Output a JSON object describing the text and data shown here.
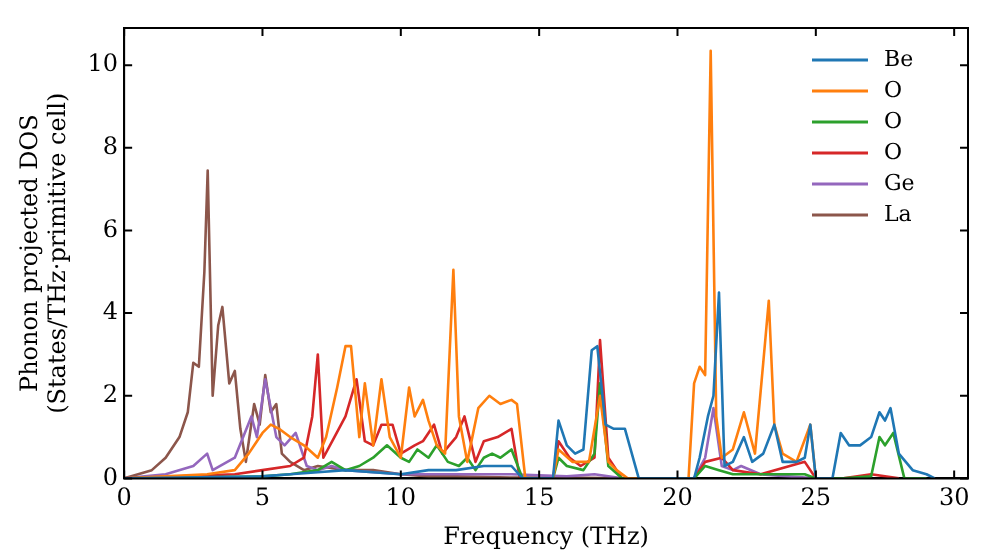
{
  "chart_data": {
    "type": "line",
    "xlabel": "Frequency (THz)",
    "ylabel": "Phonon projected DOS\n(States/THz·primitive cell)",
    "xlim": [
      0,
      30.5
    ],
    "ylim": [
      0,
      10.9
    ],
    "xticks": [
      0,
      5,
      10,
      15,
      20,
      25,
      30
    ],
    "yticks": [
      0,
      2,
      4,
      6,
      8,
      10
    ],
    "grid": false,
    "legend": "top right",
    "marker": "none",
    "line_style": "solid",
    "series": [
      {
        "name": "Be",
        "color": "#1f77b4",
        "x": [
          0,
          5,
          6,
          7,
          8,
          9,
          10,
          11,
          12,
          13,
          14,
          14.4,
          15.5,
          15.7,
          16,
          16.3,
          16.6,
          16.9,
          17.1,
          17.4,
          17.7,
          18.1,
          18.6,
          20.6,
          20.8,
          21.1,
          21.3,
          21.5,
          21.7,
          22,
          22.4,
          22.7,
          23.1,
          23.5,
          23.8,
          24.3,
          24.6,
          24.8,
          25,
          25.6,
          25.9,
          26.2,
          26.6,
          27,
          27.3,
          27.5,
          27.7,
          28,
          28.5,
          29,
          29.3
        ],
        "values": [
          0,
          0.05,
          0.1,
          0.15,
          0.2,
          0.15,
          0.1,
          0.2,
          0.2,
          0.3,
          0.3,
          0,
          0,
          1.4,
          0.8,
          0.6,
          0.7,
          3.1,
          3.2,
          1.3,
          1.2,
          1.2,
          0,
          0,
          0.5,
          1.5,
          2.0,
          4.5,
          0.3,
          0.4,
          1.0,
          0.4,
          0.6,
          1.3,
          0.4,
          0.4,
          0.5,
          1.3,
          0,
          0,
          1.1,
          0.8,
          0.8,
          1.0,
          1.6,
          1.4,
          1.7,
          0.6,
          0.2,
          0.1,
          0
        ]
      },
      {
        "name": "O",
        "color": "#ff7f0e",
        "x": [
          0,
          3,
          4,
          4.5,
          5,
          5.3,
          5.6,
          6,
          6.5,
          7,
          7.3,
          7.7,
          8,
          8.2,
          8.5,
          8.7,
          9,
          9.3,
          9.6,
          10,
          10.3,
          10.5,
          10.8,
          11,
          11.3,
          11.6,
          11.9,
          12.1,
          12.4,
          12.8,
          13.2,
          13.6,
          14,
          14.2,
          14.5,
          15.5,
          15.7,
          16.2,
          16.8,
          17.2,
          17.5,
          17.8,
          18.2,
          20.4,
          20.6,
          20.8,
          21,
          21.2,
          21.4,
          21.6,
          22,
          22.4,
          22.8,
          23.1,
          23.3,
          23.5,
          23.8,
          24.3,
          24.8,
          25,
          25.5
        ],
        "values": [
          0,
          0.1,
          0.2,
          0.6,
          1.1,
          1.3,
          1.2,
          1.0,
          0.8,
          0.5,
          1.0,
          2.2,
          3.2,
          3.2,
          1.0,
          2.3,
          0.8,
          2.4,
          1.0,
          0.5,
          2.2,
          1.5,
          1.9,
          1.4,
          0.8,
          0.6,
          5.05,
          1.5,
          0.4,
          1.7,
          2.0,
          1.8,
          1.9,
          1.8,
          0,
          0,
          0.7,
          0.4,
          0.4,
          2.0,
          0.4,
          0.2,
          0,
          0,
          2.3,
          2.7,
          2.5,
          10.35,
          1.5,
          0.5,
          0.7,
          1.6,
          0.6,
          2.8,
          4.3,
          1.3,
          0.6,
          0.4,
          1.3,
          0,
          0
        ]
      },
      {
        "name": "O",
        "color": "#2ca02c",
        "x": [
          0,
          5,
          6,
          7,
          7.5,
          8,
          8.5,
          9,
          9.5,
          10,
          10.3,
          10.6,
          11,
          11.3,
          11.7,
          12.1,
          12.4,
          12.7,
          13,
          13.3,
          13.6,
          14,
          14.4,
          15.5,
          15.7,
          16,
          16.6,
          17,
          17.2,
          17.5,
          18,
          20.6,
          21,
          21.5,
          22,
          24.6,
          25,
          26,
          27,
          27.3,
          27.5,
          27.8,
          28.2,
          29
        ],
        "values": [
          0,
          0.05,
          0.1,
          0.2,
          0.4,
          0.2,
          0.3,
          0.5,
          0.8,
          0.5,
          0.4,
          0.7,
          0.5,
          0.8,
          0.4,
          0.3,
          0.5,
          0.2,
          0.5,
          0.6,
          0.5,
          0.7,
          0,
          0,
          0.5,
          0.3,
          0.2,
          0.6,
          2.3,
          0.3,
          0,
          0,
          0.3,
          0.2,
          0.1,
          0.1,
          0,
          0,
          0.05,
          1.0,
          0.8,
          1.1,
          0,
          0
        ]
      },
      {
        "name": "O",
        "color": "#d62728",
        "x": [
          0,
          4,
          5,
          6,
          6.5,
          6.8,
          7,
          7.2,
          7.6,
          8,
          8.4,
          8.7,
          9,
          9.3,
          9.7,
          10,
          10.5,
          10.8,
          11.2,
          11.5,
          12,
          12.3,
          12.7,
          13,
          13.5,
          14,
          14.3,
          15.5,
          15.7,
          16.1,
          16.5,
          17,
          17.2,
          17.5,
          18,
          20.6,
          21,
          21.6,
          22,
          23,
          24.6,
          25,
          26,
          27,
          28
        ],
        "values": [
          0,
          0.1,
          0.2,
          0.3,
          0.5,
          1.5,
          3.0,
          0.5,
          1.0,
          1.5,
          2.4,
          0.9,
          0.8,
          1.3,
          1.3,
          0.6,
          0.8,
          0.9,
          1.3,
          0.6,
          1.0,
          1.5,
          0.4,
          0.9,
          1.0,
          1.2,
          0,
          0,
          0.9,
          0.5,
          0.3,
          0.5,
          3.35,
          0.5,
          0,
          0,
          0.4,
          0.5,
          0.2,
          0.1,
          0.4,
          0,
          0,
          0.1,
          0
        ]
      },
      {
        "name": "Ge",
        "color": "#9467bd",
        "x": [
          0,
          1.5,
          2.5,
          3,
          3.2,
          4,
          4.6,
          4.8,
          5.1,
          5.5,
          5.8,
          6.2,
          6.6,
          7,
          7.5,
          8,
          9,
          10,
          12,
          14,
          16,
          17,
          18,
          20.6,
          21,
          21.3,
          21.6,
          22,
          22.3,
          23,
          24,
          25
        ],
        "values": [
          0,
          0.1,
          0.3,
          0.6,
          0.2,
          0.5,
          1.5,
          1.0,
          2.4,
          1.0,
          0.8,
          1.1,
          0.3,
          0.2,
          0.3,
          0.2,
          0.15,
          0.1,
          0.1,
          0.1,
          0.05,
          0.1,
          0,
          0,
          0.5,
          1.7,
          0.3,
          0.2,
          0.3,
          0.1,
          0.05,
          0
        ]
      },
      {
        "name": "La",
        "color": "#8c564b",
        "x": [
          0,
          1,
          1.5,
          2,
          2.3,
          2.5,
          2.7,
          2.9,
          3.02,
          3.2,
          3.4,
          3.55,
          3.8,
          4.0,
          4.2,
          4.4,
          4.7,
          4.9,
          5.1,
          5.3,
          5.5,
          5.7,
          6,
          6.5,
          7,
          8,
          9,
          10,
          11,
          12,
          14,
          16,
          18,
          20
        ],
        "values": [
          0,
          0.2,
          0.5,
          1.0,
          1.6,
          2.8,
          2.7,
          5.0,
          7.45,
          2.0,
          3.7,
          4.15,
          2.3,
          2.6,
          1.2,
          0.4,
          1.8,
          1.3,
          2.5,
          1.6,
          1.8,
          0.6,
          0.4,
          0.2,
          0.3,
          0.2,
          0.2,
          0.1,
          0.05,
          0.05,
          0.02,
          0.02,
          0,
          0
        ]
      }
    ]
  }
}
